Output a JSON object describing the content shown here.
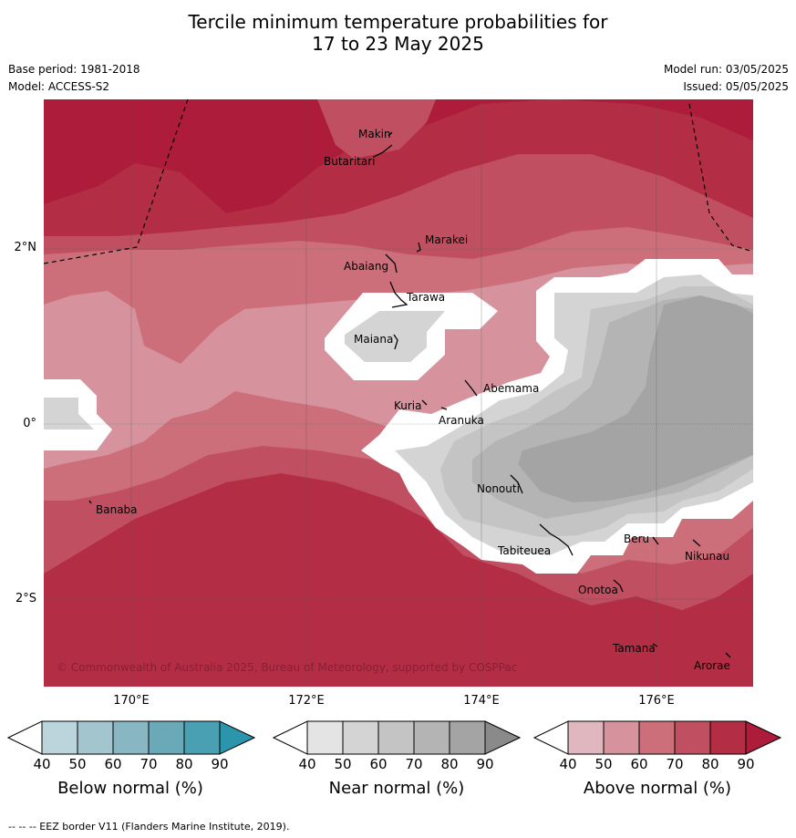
{
  "title_line1": "Tercile minimum temperature probabilities for",
  "title_line2": "17 to 23 May 2025",
  "base_period": "Base period: 1981-2018",
  "model": "Model: ACCESS-S2",
  "model_run": "Model run: 03/05/2025",
  "issued": "Issued: 05/05/2025",
  "copyright": "© Commonwealth of Australia 2025, Bureau of Meteorology, supported by COSPPac",
  "footer": "-- -- -- EEZ border V11 (Flanders Marine Institute, 2019).",
  "lat_labels": [
    "2°N",
    "0°",
    "2°S"
  ],
  "lon_labels": [
    "170°E",
    "172°E",
    "174°E",
    "176°E"
  ],
  "places": [
    "Makin",
    "Butaritari",
    "Marakei",
    "Abaiang",
    "Tarawa",
    "Maiana",
    "Abemama",
    "Kuria",
    "Aranuka",
    "Nonouti",
    "Banaba",
    "Tabiteuea",
    "Beru",
    "Nikunau",
    "Onotoa",
    "Tamana",
    "Arorae"
  ],
  "colorbars": [
    {
      "label": "Below normal (%)",
      "ticks": [
        "40",
        "50",
        "60",
        "70",
        "80",
        "90"
      ],
      "colors": [
        "#ffffff",
        "#bcd5dc",
        "#a3c6ce",
        "#88b7c3",
        "#6aa9b8",
        "#48a0b2",
        "#2c95ab"
      ]
    },
    {
      "label": "Near normal (%)",
      "ticks": [
        "40",
        "50",
        "60",
        "70",
        "80",
        "90"
      ],
      "colors": [
        "#ffffff",
        "#e4e4e4",
        "#d4d4d4",
        "#c4c4c4",
        "#b4b4b4",
        "#a4a4a4",
        "#8a8a8a"
      ]
    },
    {
      "label": "Above normal (%)",
      "ticks": [
        "40",
        "50",
        "60",
        "70",
        "80",
        "90"
      ],
      "colors": [
        "#ffffff",
        "#e0b6bf",
        "#d6939d",
        "#cc6f7b",
        "#c05061",
        "#b32e45",
        "#ad1c3a"
      ]
    }
  ],
  "map_colors": {
    "above_90": "#ad1c3a",
    "above_80": "#b32e45",
    "above_70": "#c05061",
    "above_60": "#cc6f7b",
    "above_50": "#d6939d",
    "near_50": "#d4d4d4",
    "near_60": "#c4c4c4",
    "near_70": "#b4b4b4",
    "near_80": "#a4a4a4"
  }
}
